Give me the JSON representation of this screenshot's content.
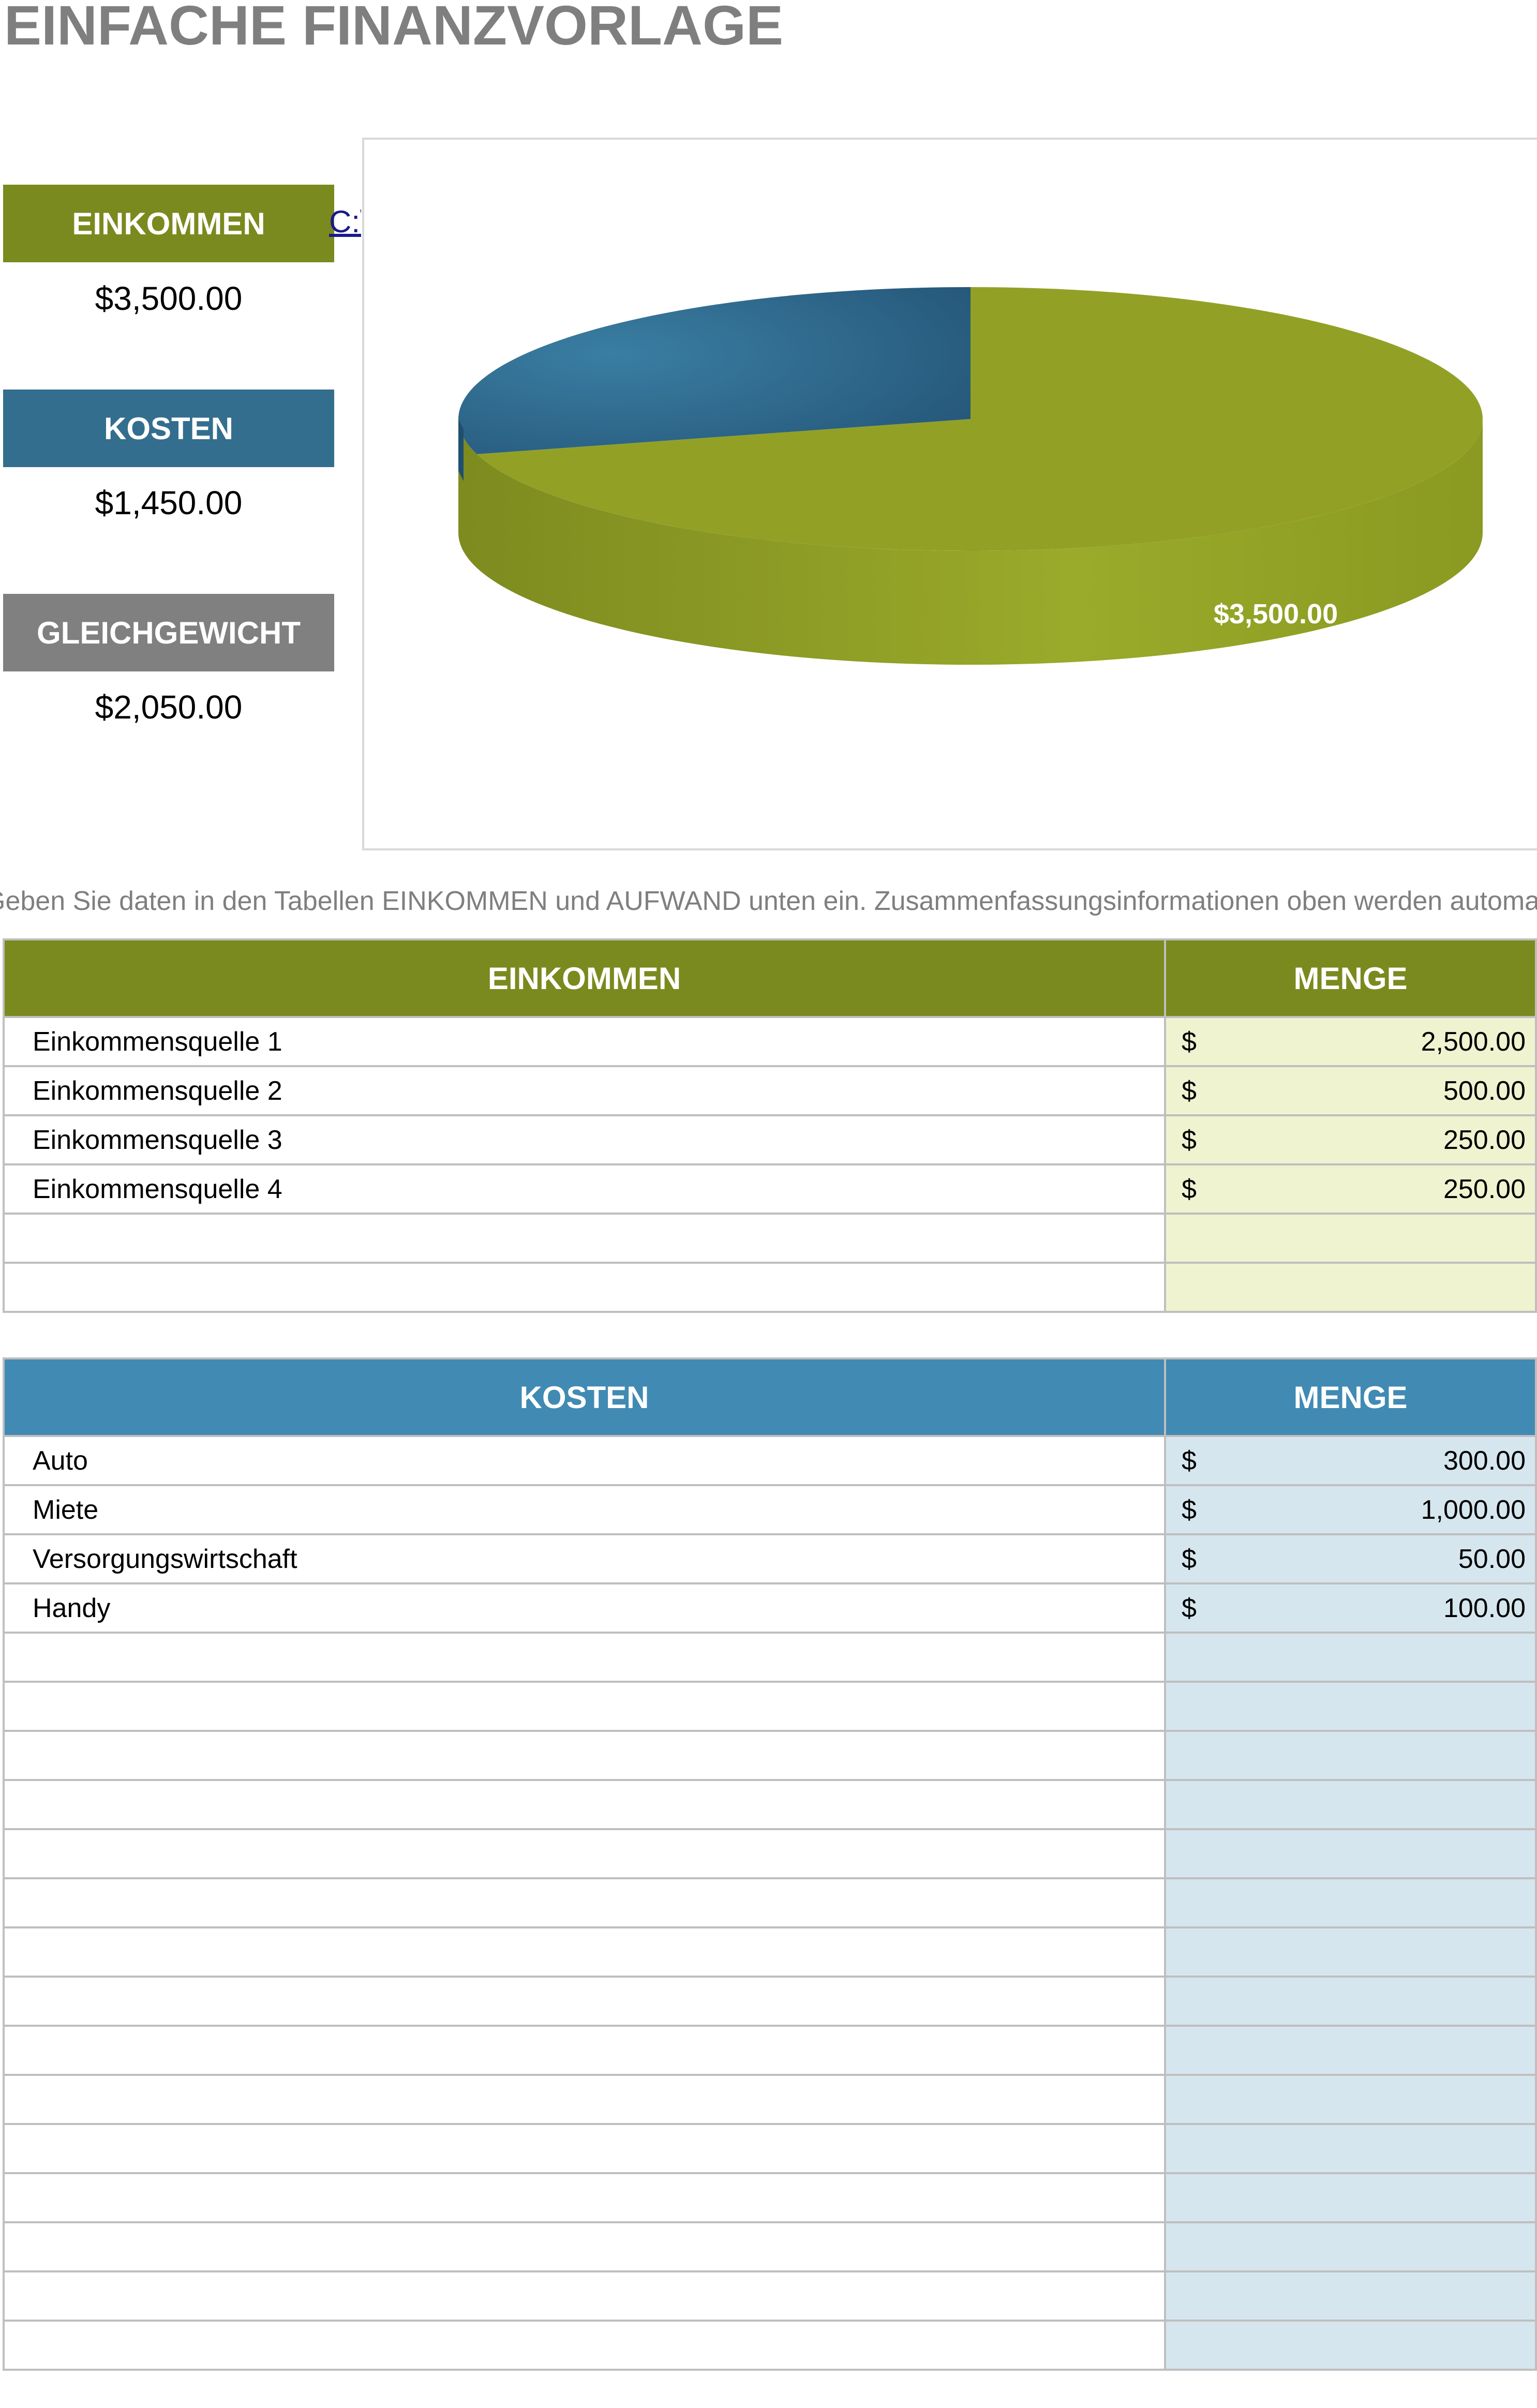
{
  "title": "EINFACHE FINANZVORLAGE",
  "summary": {
    "income": {
      "label": "EINKOMMEN",
      "value": "$3,500.00",
      "color": "#7a8a1e"
    },
    "expenses": {
      "label": "KOSTEN",
      "value": "$1,450.00",
      "color": "#336e8f"
    },
    "balance": {
      "label": "GLEICHGEWICHT",
      "value": "$2,050.00",
      "color": "#808080"
    }
  },
  "link_fragment": "C:\\",
  "chart_data": {
    "type": "pie",
    "style": "3d",
    "slices": [
      {
        "label": "EINKOMMEN",
        "value": 3500,
        "color": "#92a126"
      },
      {
        "label": "KOSTEN",
        "value": 1450,
        "color": "#336e8f"
      }
    ],
    "data_labels": [
      "$3,500.00"
    ]
  },
  "instruction": "Geben Sie daten in den Tabellen EINKOMMEN und AUFWAND unten ein. Zusammenfassungsinformationen oben werden automatisch aktualisiert.",
  "income_table": {
    "headers": [
      "EINKOMMEN",
      "MENGE"
    ],
    "currency": "$",
    "rows": [
      {
        "name": "Einkommensquelle 1",
        "amount": "2,500.00"
      },
      {
        "name": "Einkommensquelle 2",
        "amount": "500.00"
      },
      {
        "name": "Einkommensquelle 3",
        "amount": "250.00"
      },
      {
        "name": "Einkommensquelle 4",
        "amount": "250.00"
      }
    ],
    "empty_rows": 2
  },
  "expense_table": {
    "headers": [
      "KOSTEN",
      "MENGE"
    ],
    "currency": "$",
    "rows": [
      {
        "name": "Auto",
        "amount": "300.00"
      },
      {
        "name": "Miete",
        "amount": "1,000.00"
      },
      {
        "name": "Versorgungswirtschaft",
        "amount": "50.00"
      },
      {
        "name": "Handy",
        "amount": "100.00"
      }
    ],
    "empty_rows": 15
  }
}
